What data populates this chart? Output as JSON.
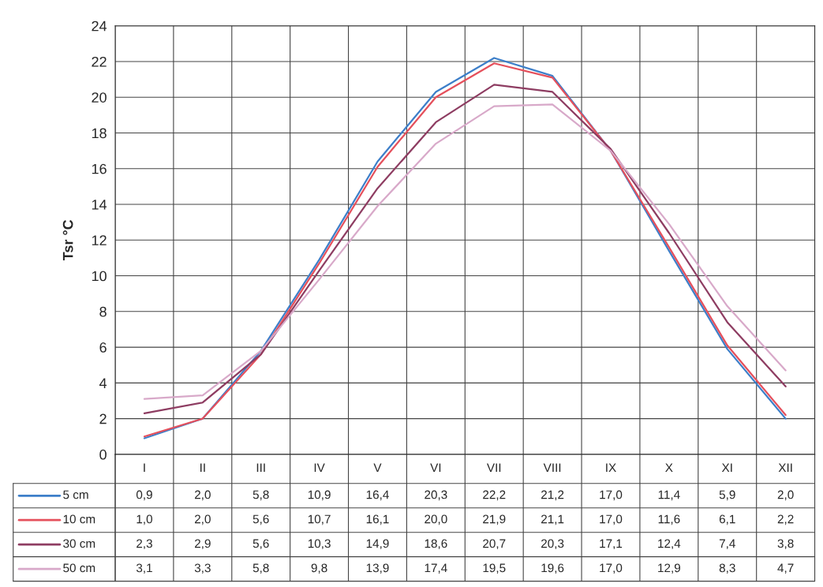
{
  "chart_data": {
    "type": "line",
    "ylabel": "Tsr °C",
    "categories": [
      "I",
      "II",
      "III",
      "IV",
      "V",
      "VI",
      "VII",
      "VIII",
      "IX",
      "X",
      "XI",
      "XII"
    ],
    "series": [
      {
        "name": "5 cm",
        "color": "#3d7fc9",
        "values": [
          0.9,
          2.0,
          5.8,
          10.9,
          16.4,
          20.3,
          22.2,
          21.2,
          17.0,
          11.4,
          5.9,
          2.0
        ],
        "value_labels": [
          "0,9",
          "2,0",
          "5,8",
          "10,9",
          "16,4",
          "20,3",
          "22,2",
          "21,2",
          "17,0",
          "11,4",
          "5,9",
          "2,0"
        ]
      },
      {
        "name": "10 cm",
        "color": "#e5505c",
        "values": [
          1.0,
          2.0,
          5.6,
          10.7,
          16.1,
          20.0,
          21.9,
          21.1,
          17.0,
          11.6,
          6.1,
          2.2
        ],
        "value_labels": [
          "1,0",
          "2,0",
          "5,6",
          "10,7",
          "16,1",
          "20,0",
          "21,9",
          "21,1",
          "17,0",
          "11,6",
          "6,1",
          "2,2"
        ]
      },
      {
        "name": "30 cm",
        "color": "#8e3d62",
        "values": [
          2.3,
          2.9,
          5.6,
          10.3,
          14.9,
          18.6,
          20.7,
          20.3,
          17.1,
          12.4,
          7.4,
          3.8
        ],
        "value_labels": [
          "2,3",
          "2,9",
          "5,6",
          "10,3",
          "14,9",
          "18,6",
          "20,7",
          "20,3",
          "17,1",
          "12,4",
          "7,4",
          "3,8"
        ]
      },
      {
        "name": "50 cm",
        "color": "#d8a9c9",
        "values": [
          3.1,
          3.3,
          5.8,
          9.8,
          13.9,
          17.4,
          19.5,
          19.6,
          17.0,
          12.9,
          8.3,
          4.7
        ],
        "value_labels": [
          "3,1",
          "3,3",
          "5,8",
          "9,8",
          "13,9",
          "17,4",
          "19,5",
          "19,6",
          "17,0",
          "12,9",
          "8,3",
          "4,7"
        ]
      }
    ],
    "ylim": [
      0,
      24
    ],
    "yticks": [
      0,
      2,
      4,
      6,
      8,
      10,
      12,
      14,
      16,
      18,
      20,
      22,
      24
    ],
    "grid": true,
    "legend": "bottom",
    "marker": "none",
    "line_style": "solid"
  }
}
